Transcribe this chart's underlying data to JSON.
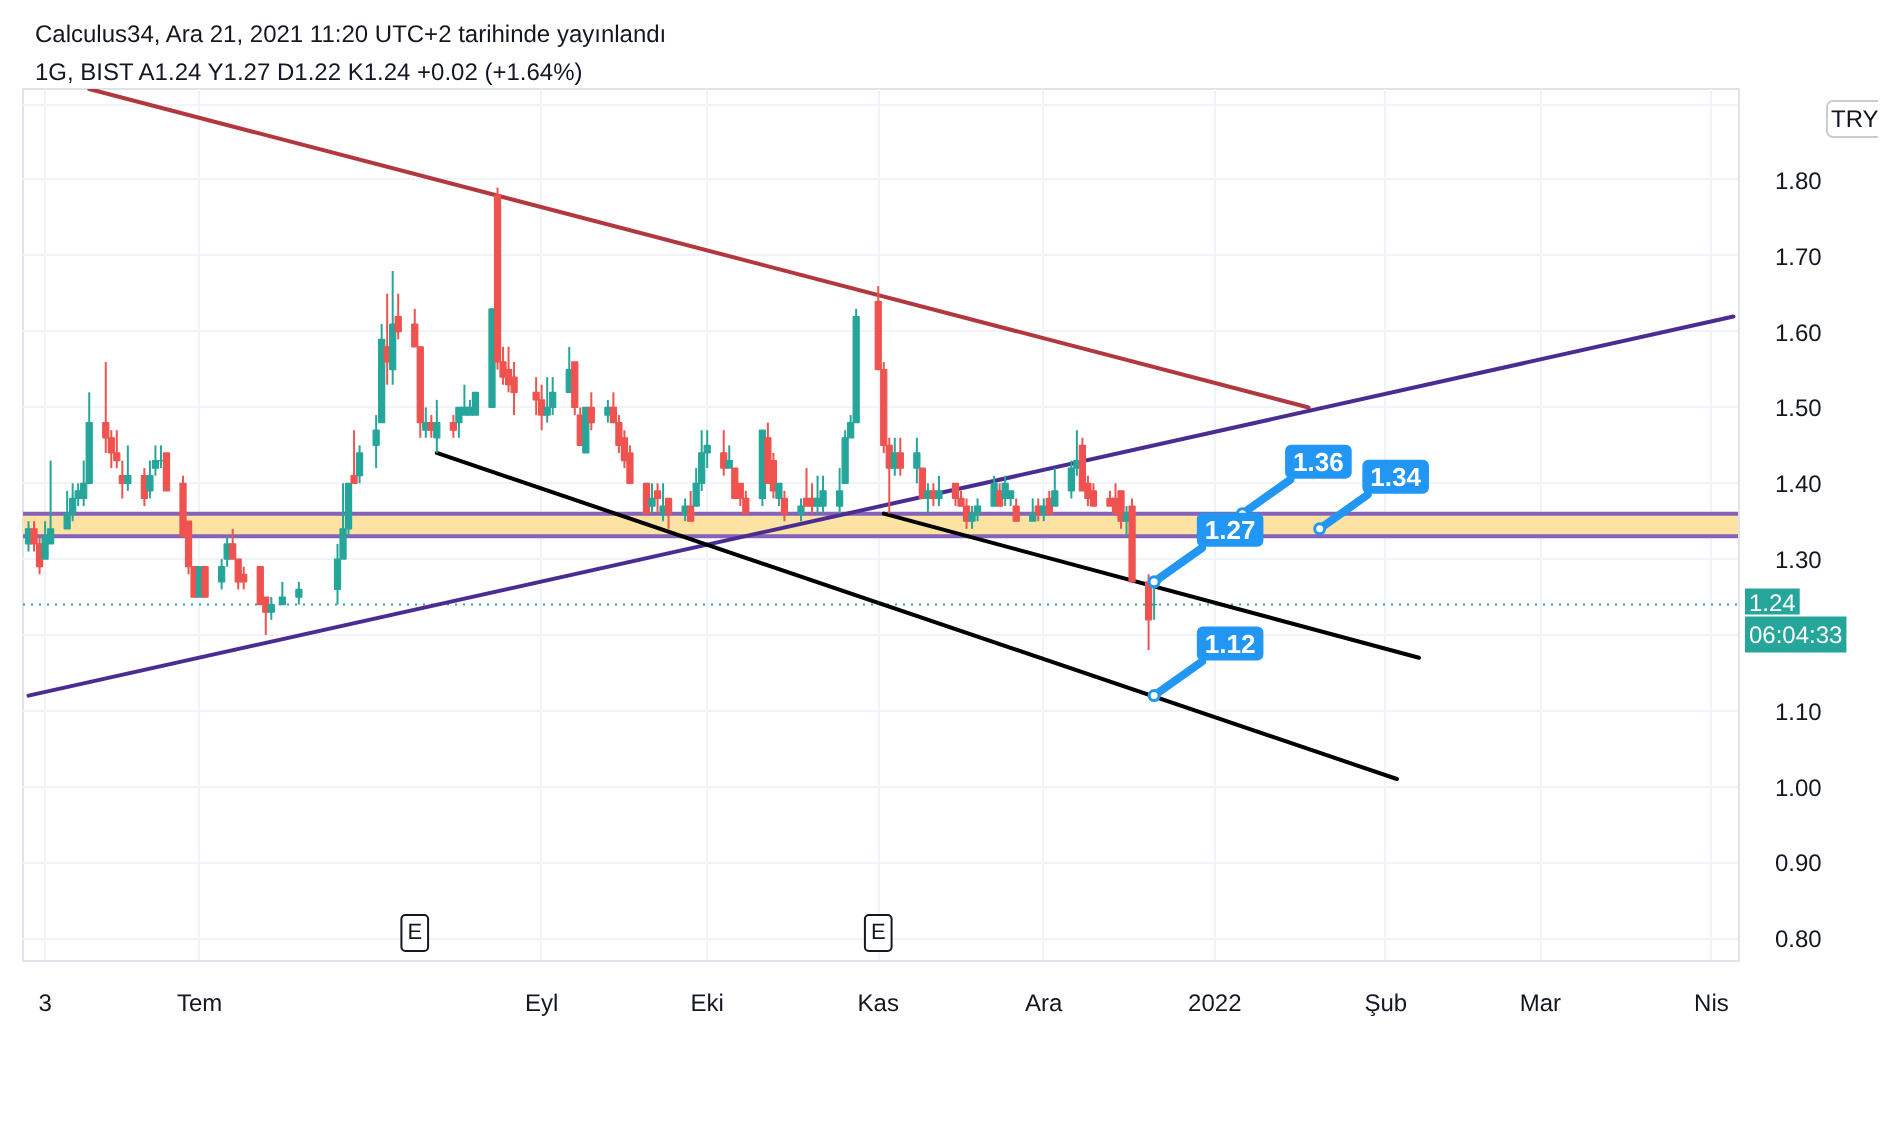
{
  "chart_data": {
    "type": "candlestick",
    "title": "Calculus34, Ara 21, 2021 11:20 UTC+2 tarihinde yayınlandı",
    "subtitle": "1G, BIST  A1.24  Y1.27  D1.22  K1.24  +0.02 (+1.64%)",
    "x": [
      "2021-05-31",
      "2021-06-01",
      "2021-06-02",
      "2021-06-03",
      "2021-06-04",
      "2021-06-07",
      "2021-06-08",
      "2021-06-09",
      "2021-06-10",
      "2021-06-11",
      "2021-06-14",
      "2021-06-15",
      "2021-06-16",
      "2021-06-17",
      "2021-06-18",
      "2021-06-21",
      "2021-06-22",
      "2021-06-23",
      "2021-06-24",
      "2021-06-25",
      "2021-06-28",
      "2021-06-29",
      "2021-06-30",
      "2021-07-01",
      "2021-07-02",
      "2021-07-05",
      "2021-07-06",
      "2021-07-07",
      "2021-07-08",
      "2021-07-09",
      "2021-07-12",
      "2021-07-13",
      "2021-07-14",
      "2021-07-16",
      "2021-07-19",
      "2021-07-26",
      "2021-07-27",
      "2021-07-28",
      "2021-07-29",
      "2021-07-30",
      "2021-08-02",
      "2021-08-03",
      "2021-08-04",
      "2021-08-05",
      "2021-08-06",
      "2021-08-09",
      "2021-08-10",
      "2021-08-11",
      "2021-08-12",
      "2021-08-13",
      "2021-08-16",
      "2021-08-17",
      "2021-08-18",
      "2021-08-19",
      "2021-08-20",
      "2021-08-23",
      "2021-08-24",
      "2021-08-25",
      "2021-08-26",
      "2021-08-27",
      "2021-08-31",
      "2021-09-01",
      "2021-09-02",
      "2021-09-03",
      "2021-09-06",
      "2021-09-07",
      "2021-09-08",
      "2021-09-09",
      "2021-09-10",
      "2021-09-13",
      "2021-09-14",
      "2021-09-15",
      "2021-09-16",
      "2021-09-17",
      "2021-09-20",
      "2021-09-21",
      "2021-09-22",
      "2021-09-23",
      "2021-09-24",
      "2021-09-27",
      "2021-09-28",
      "2021-09-29",
      "2021-09-30",
      "2021-10-01",
      "2021-10-04",
      "2021-10-05",
      "2021-10-06",
      "2021-10-07",
      "2021-10-08",
      "2021-10-11",
      "2021-10-12",
      "2021-10-13",
      "2021-10-14",
      "2021-10-15",
      "2021-10-18",
      "2021-10-19",
      "2021-10-20",
      "2021-10-21",
      "2021-10-22",
      "2021-10-25",
      "2021-10-26",
      "2021-10-27",
      "2021-10-28",
      "2021-11-01",
      "2021-11-02",
      "2021-11-03",
      "2021-11-04",
      "2021-11-05",
      "2021-11-08",
      "2021-11-09",
      "2021-11-10",
      "2021-11-11",
      "2021-11-12",
      "2021-11-15",
      "2021-11-16",
      "2021-11-17",
      "2021-11-18",
      "2021-11-19",
      "2021-11-22",
      "2021-11-23",
      "2021-11-24",
      "2021-11-25",
      "2021-11-26",
      "2021-11-29",
      "2021-11-30",
      "2021-12-01",
      "2021-12-02",
      "2021-12-03",
      "2021-12-06",
      "2021-12-07",
      "2021-12-08",
      "2021-12-09",
      "2021-12-10",
      "2021-12-13",
      "2021-12-14",
      "2021-12-15",
      "2021-12-16",
      "2021-12-17",
      "2021-12-20",
      "2021-12-21"
    ],
    "ohlc": [
      [
        1.32,
        1.35,
        1.31,
        1.34
      ],
      [
        1.34,
        1.35,
        1.31,
        1.32
      ],
      [
        1.32,
        1.33,
        1.28,
        1.29
      ],
      [
        1.3,
        1.35,
        1.3,
        1.33
      ],
      [
        1.32,
        1.43,
        1.32,
        1.34
      ],
      [
        1.34,
        1.39,
        1.34,
        1.36
      ],
      [
        1.36,
        1.4,
        1.35,
        1.38
      ],
      [
        1.38,
        1.4,
        1.37,
        1.39
      ],
      [
        1.38,
        1.43,
        1.37,
        1.4
      ],
      [
        1.4,
        1.52,
        1.4,
        1.48
      ],
      [
        1.48,
        1.56,
        1.44,
        1.46
      ],
      [
        1.46,
        1.47,
        1.42,
        1.44
      ],
      [
        1.44,
        1.47,
        1.42,
        1.43
      ],
      [
        1.41,
        1.43,
        1.38,
        1.4
      ],
      [
        1.4,
        1.45,
        1.39,
        1.41
      ],
      [
        1.41,
        1.42,
        1.37,
        1.38
      ],
      [
        1.39,
        1.43,
        1.38,
        1.41
      ],
      [
        1.42,
        1.45,
        1.41,
        1.43
      ],
      [
        1.43,
        1.45,
        1.42,
        1.43
      ],
      [
        1.44,
        1.44,
        1.39,
        1.39
      ],
      [
        1.4,
        1.41,
        1.33,
        1.33
      ],
      [
        1.35,
        1.35,
        1.28,
        1.29
      ],
      [
        1.29,
        1.29,
        1.25,
        1.25
      ],
      [
        1.25,
        1.29,
        1.25,
        1.29
      ],
      [
        1.29,
        1.29,
        1.25,
        1.25
      ],
      [
        1.27,
        1.3,
        1.26,
        1.29
      ],
      [
        1.3,
        1.33,
        1.29,
        1.32
      ],
      [
        1.32,
        1.34,
        1.3,
        1.3
      ],
      [
        1.3,
        1.3,
        1.26,
        1.27
      ],
      [
        1.28,
        1.29,
        1.26,
        1.27
      ],
      [
        1.29,
        1.29,
        1.24,
        1.24
      ],
      [
        1.25,
        1.25,
        1.2,
        1.23
      ],
      [
        1.23,
        1.25,
        1.22,
        1.24
      ],
      [
        1.24,
        1.27,
        1.24,
        1.25
      ],
      [
        1.25,
        1.27,
        1.24,
        1.26
      ],
      [
        1.26,
        1.32,
        1.24,
        1.3
      ],
      [
        1.3,
        1.4,
        1.3,
        1.34
      ],
      [
        1.34,
        1.4,
        1.33,
        1.4
      ],
      [
        1.41,
        1.47,
        1.4,
        1.4
      ],
      [
        1.41,
        1.45,
        1.4,
        1.44
      ],
      [
        1.45,
        1.49,
        1.42,
        1.47
      ],
      [
        1.48,
        1.61,
        1.48,
        1.59
      ],
      [
        1.58,
        1.65,
        1.53,
        1.56
      ],
      [
        1.55,
        1.68,
        1.53,
        1.61
      ],
      [
        1.62,
        1.65,
        1.59,
        1.6
      ],
      [
        1.61,
        1.63,
        1.58,
        1.58
      ],
      [
        1.58,
        1.58,
        1.46,
        1.48
      ],
      [
        1.47,
        1.5,
        1.46,
        1.48
      ],
      [
        1.48,
        1.49,
        1.46,
        1.47
      ],
      [
        1.46,
        1.51,
        1.44,
        1.48
      ],
      [
        1.48,
        1.49,
        1.46,
        1.47
      ],
      [
        1.48,
        1.5,
        1.46,
        1.5
      ],
      [
        1.49,
        1.53,
        1.49,
        1.5
      ],
      [
        1.49,
        1.51,
        1.49,
        1.5
      ],
      [
        1.49,
        1.52,
        1.49,
        1.52
      ],
      [
        1.5,
        1.63,
        1.5,
        1.63
      ],
      [
        1.78,
        1.79,
        1.55,
        1.56
      ],
      [
        1.56,
        1.58,
        1.53,
        1.54
      ],
      [
        1.55,
        1.58,
        1.52,
        1.53
      ],
      [
        1.54,
        1.56,
        1.49,
        1.52
      ],
      [
        1.52,
        1.54,
        1.49,
        1.51
      ],
      [
        1.51,
        1.53,
        1.47,
        1.49
      ],
      [
        1.49,
        1.54,
        1.48,
        1.5
      ],
      [
        1.5,
        1.54,
        1.49,
        1.52
      ],
      [
        1.52,
        1.58,
        1.52,
        1.55
      ],
      [
        1.56,
        1.56,
        1.49,
        1.5
      ],
      [
        1.49,
        1.5,
        1.45,
        1.45
      ],
      [
        1.44,
        1.5,
        1.44,
        1.5
      ],
      [
        1.5,
        1.52,
        1.47,
        1.48
      ],
      [
        1.49,
        1.51,
        1.48,
        1.5
      ],
      [
        1.5,
        1.52,
        1.48,
        1.48
      ],
      [
        1.48,
        1.49,
        1.44,
        1.45
      ],
      [
        1.46,
        1.47,
        1.42,
        1.43
      ],
      [
        1.44,
        1.45,
        1.4,
        1.4
      ],
      [
        1.4,
        1.4,
        1.36,
        1.36
      ],
      [
        1.37,
        1.4,
        1.36,
        1.38
      ],
      [
        1.39,
        1.4,
        1.36,
        1.38
      ],
      [
        1.36,
        1.4,
        1.35,
        1.37
      ],
      [
        1.38,
        1.38,
        1.34,
        1.36
      ],
      [
        1.36,
        1.38,
        1.35,
        1.37
      ],
      [
        1.37,
        1.39,
        1.35,
        1.35
      ],
      [
        1.37,
        1.42,
        1.37,
        1.4
      ],
      [
        1.4,
        1.47,
        1.39,
        1.44
      ],
      [
        1.44,
        1.47,
        1.42,
        1.45
      ],
      [
        1.44,
        1.47,
        1.41,
        1.42
      ],
      [
        1.42,
        1.45,
        1.42,
        1.43
      ],
      [
        1.42,
        1.42,
        1.38,
        1.38
      ],
      [
        1.4,
        1.4,
        1.37,
        1.38
      ],
      [
        1.38,
        1.39,
        1.36,
        1.36
      ],
      [
        1.38,
        1.47,
        1.37,
        1.47
      ],
      [
        1.46,
        1.48,
        1.4,
        1.4
      ],
      [
        1.43,
        1.44,
        1.38,
        1.39
      ],
      [
        1.38,
        1.4,
        1.37,
        1.4
      ],
      [
        1.38,
        1.39,
        1.35,
        1.36
      ],
      [
        1.36,
        1.38,
        1.35,
        1.37
      ],
      [
        1.38,
        1.42,
        1.37,
        1.37
      ],
      [
        1.38,
        1.4,
        1.36,
        1.37
      ],
      [
        1.37,
        1.41,
        1.36,
        1.38
      ],
      [
        1.37,
        1.41,
        1.36,
        1.39
      ],
      [
        1.37,
        1.42,
        1.36,
        1.39
      ],
      [
        1.4,
        1.47,
        1.4,
        1.46
      ],
      [
        1.46,
        1.49,
        1.46,
        1.48
      ],
      [
        1.48,
        1.63,
        1.48,
        1.62
      ],
      [
        1.64,
        1.66,
        1.55,
        1.55
      ],
      [
        1.55,
        1.56,
        1.44,
        1.45
      ],
      [
        1.45,
        1.46,
        1.36,
        1.42
      ],
      [
        1.42,
        1.46,
        1.41,
        1.44
      ],
      [
        1.44,
        1.46,
        1.41,
        1.42
      ],
      [
        1.42,
        1.46,
        1.4,
        1.44
      ],
      [
        1.42,
        1.42,
        1.38,
        1.38
      ],
      [
        1.38,
        1.4,
        1.36,
        1.39
      ],
      [
        1.39,
        1.4,
        1.37,
        1.38
      ],
      [
        1.38,
        1.41,
        1.37,
        1.39
      ],
      [
        1.4,
        1.4,
        1.37,
        1.38
      ],
      [
        1.38,
        1.39,
        1.37,
        1.37
      ],
      [
        1.37,
        1.38,
        1.34,
        1.35
      ],
      [
        1.35,
        1.37,
        1.34,
        1.36
      ],
      [
        1.36,
        1.38,
        1.35,
        1.37
      ],
      [
        1.37,
        1.41,
        1.37,
        1.4
      ],
      [
        1.39,
        1.4,
        1.37,
        1.37
      ],
      [
        1.38,
        1.41,
        1.37,
        1.4
      ],
      [
        1.38,
        1.39,
        1.37,
        1.39
      ],
      [
        1.37,
        1.38,
        1.35,
        1.35
      ],
      [
        1.35,
        1.38,
        1.35,
        1.36
      ],
      [
        1.37,
        1.38,
        1.35,
        1.36
      ],
      [
        1.36,
        1.38,
        1.35,
        1.37
      ],
      [
        1.38,
        1.39,
        1.36,
        1.36
      ],
      [
        1.37,
        1.42,
        1.37,
        1.39
      ],
      [
        1.39,
        1.43,
        1.38,
        1.42
      ],
      [
        1.42,
        1.47,
        1.41,
        1.43
      ],
      [
        1.45,
        1.46,
        1.39,
        1.39
      ],
      [
        1.4,
        1.41,
        1.37,
        1.38
      ],
      [
        1.39,
        1.4,
        1.37,
        1.37
      ],
      [
        1.38,
        1.39,
        1.37,
        1.37
      ],
      [
        1.38,
        1.4,
        1.36,
        1.36
      ],
      [
        1.39,
        1.39,
        1.34,
        1.35
      ],
      [
        1.35,
        1.37,
        1.33,
        1.36
      ],
      [
        1.37,
        1.38,
        1.27,
        1.27
      ],
      [
        1.27,
        1.28,
        1.18,
        1.22
      ],
      [
        1.24,
        1.27,
        1.22,
        1.24
      ]
    ],
    "colors": [
      "#26a69a",
      "#ef5350",
      "#ef5350",
      "#26a69a",
      "#26a69a",
      "#26a69a",
      "#26a69a",
      "#26a69a",
      "#26a69a",
      "#26a69a",
      "#ef5350",
      "#ef5350",
      "#ef5350",
      "#ef5350",
      "#26a69a",
      "#ef5350",
      "#26a69a",
      "#26a69a",
      "#26a69a",
      "#ef5350",
      "#ef5350",
      "#ef5350",
      "#ef5350",
      "#26a69a",
      "#ef5350",
      "#26a69a",
      "#26a69a",
      "#ef5350",
      "#ef5350",
      "#ef5350",
      "#ef5350",
      "#ef5350",
      "#26a69a",
      "#26a69a",
      "#26a69a",
      "#26a69a",
      "#26a69a",
      "#26a69a",
      "#ef5350",
      "#26a69a",
      "#26a69a",
      "#26a69a",
      "#ef5350",
      "#26a69a",
      "#ef5350",
      "#ef5350",
      "#ef5350",
      "#26a69a",
      "#ef5350",
      "#26a69a",
      "#ef5350",
      "#26a69a",
      "#26a69a",
      "#26a69a",
      "#26a69a",
      "#26a69a",
      "#ef5350",
      "#ef5350",
      "#ef5350",
      "#ef5350",
      "#ef5350",
      "#ef5350",
      "#26a69a",
      "#26a69a",
      "#26a69a",
      "#ef5350",
      "#ef5350",
      "#26a69a",
      "#ef5350",
      "#26a69a",
      "#ef5350",
      "#ef5350",
      "#ef5350",
      "#ef5350",
      "#ef5350",
      "#26a69a",
      "#ef5350",
      "#26a69a",
      "#ef5350",
      "#26a69a",
      "#ef5350",
      "#26a69a",
      "#26a69a",
      "#26a69a",
      "#ef5350",
      "#26a69a",
      "#ef5350",
      "#ef5350",
      "#ef5350",
      "#26a69a",
      "#ef5350",
      "#ef5350",
      "#26a69a",
      "#ef5350",
      "#26a69a",
      "#ef5350",
      "#ef5350",
      "#26a69a",
      "#26a69a",
      "#26a69a",
      "#26a69a",
      "#26a69a",
      "#26a69a",
      "#ef5350",
      "#ef5350",
      "#ef5350",
      "#26a69a",
      "#ef5350",
      "#26a69a",
      "#ef5350",
      "#26a69a",
      "#ef5350",
      "#26a69a",
      "#ef5350",
      "#ef5350",
      "#ef5350",
      "#26a69a",
      "#26a69a",
      "#26a69a",
      "#ef5350",
      "#26a69a",
      "#26a69a",
      "#ef5350",
      "#26a69a",
      "#ef5350",
      "#26a69a",
      "#ef5350",
      "#26a69a",
      "#26a69a",
      "#26a69a",
      "#ef5350",
      "#ef5350",
      "#ef5350",
      "#ef5350",
      "#ef5350",
      "#ef5350",
      "#26a69a",
      "#ef5350",
      "#ef5350",
      "#26a69a"
    ],
    "series": [
      {
        "type": "line",
        "x": [
          "2021-06-11",
          "2022-01-18"
        ],
        "values": [
          1.92,
          1.5
        ],
        "color": "#b2373e"
      },
      {
        "type": "line",
        "x": [
          "2021-05-31",
          "2022-04-05"
        ],
        "values": [
          1.12,
          1.62
        ],
        "color": "#4b2c92"
      },
      {
        "type": "line",
        "x": [
          "2021-08-13",
          "2022-02-03"
        ],
        "values": [
          1.44,
          1.01
        ],
        "color": "#000000"
      },
      {
        "type": "line",
        "x": [
          "2021-11-02",
          "2022-02-07"
        ],
        "values": [
          1.36,
          1.17
        ],
        "color": "#000000"
      }
    ],
    "xlim": [
      "2021-05-30",
      "2022-04-06"
    ],
    "ylim": [
      0.77,
      1.92
    ],
    "xticks": [
      {
        "value": "2021-06-03",
        "label": "3"
      },
      {
        "value": "2021-07-01",
        "label": "Tem"
      },
      {
        "value": "2021-09-01",
        "label": "Eyl"
      },
      {
        "value": "2021-10-01",
        "label": "Eki"
      },
      {
        "value": "2021-11-01",
        "label": "Kas"
      },
      {
        "value": "2021-12-01",
        "label": "Ara"
      },
      {
        "value": "2022-01-01",
        "label": "2022"
      },
      {
        "value": "2022-02-01",
        "label": "Şub"
      },
      {
        "value": "2022-03-01",
        "label": "Mar"
      },
      {
        "value": "2022-04-01",
        "label": "Nis"
      }
    ],
    "yticks": [
      {
        "value": 0.8,
        "label": "0.80"
      },
      {
        "value": 0.9,
        "label": "0.90"
      },
      {
        "value": 1.0,
        "label": "1.00"
      },
      {
        "value": 1.1,
        "label": "1.10"
      },
      {
        "value": 1.2,
        "label": null
      },
      {
        "value": 1.3,
        "label": "1.30"
      },
      {
        "value": 1.4,
        "label": "1.40"
      },
      {
        "value": 1.5,
        "label": "1.50"
      },
      {
        "value": 1.6,
        "label": "1.60"
      },
      {
        "value": 1.7,
        "label": "1.70"
      },
      {
        "value": 1.8,
        "label": "1.80"
      },
      {
        "value": 1.9,
        "label": null
      }
    ],
    "grid": true,
    "bands": [
      {
        "axis": "y",
        "from": 1.33,
        "to": 1.36,
        "color": "#fce3a4"
      }
    ],
    "ref_lines": [
      {
        "axis": "y",
        "value": 1.36,
        "color": "#8662b8"
      },
      {
        "axis": "y",
        "value": 1.33,
        "color": "#8662b8"
      },
      {
        "axis": "y",
        "value": 1.24,
        "label": "1.24",
        "color": "#26a69a",
        "line_style": "dotted"
      }
    ],
    "annotations": [
      "TRY",
      "06:04:33",
      {
        "text": "E",
        "x": "2021-08-09"
      },
      {
        "text": "E",
        "x": "2021-11-01"
      },
      {
        "text": "1.36",
        "x": "2022-01-06",
        "y": 1.36
      },
      {
        "text": "1.34",
        "x": "2022-01-20",
        "y": 1.34
      },
      {
        "text": "1.27",
        "x": "2021-12-21",
        "y": 1.27
      },
      {
        "text": "1.12",
        "x": "2021-12-21",
        "y": 1.12
      }
    ]
  }
}
